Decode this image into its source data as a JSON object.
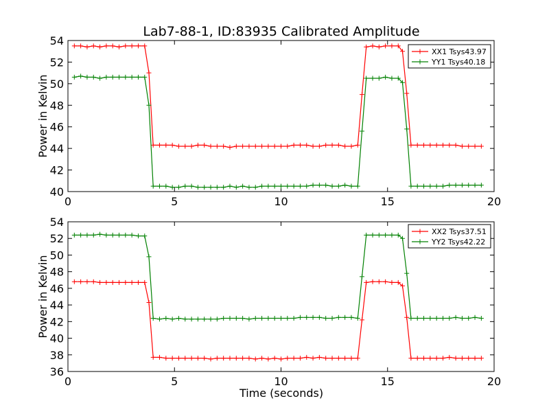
{
  "figure": {
    "title": "Lab7-88-1, ID:83935 Calibrated Amplitude",
    "xlabel": "Time (seconds)"
  },
  "colors": {
    "red": "#ff0000",
    "green": "#008000"
  },
  "chart_data": [
    {
      "type": "line",
      "ylabel": "Power in Kelvin",
      "xlim": [
        0,
        20
      ],
      "ylim": [
        40,
        54
      ],
      "xticks": [
        0,
        5,
        10,
        15,
        20
      ],
      "yticks": [
        40,
        42,
        44,
        46,
        48,
        50,
        52,
        54
      ],
      "grid": false,
      "legend": "top-right",
      "x": [
        0.3,
        0.6,
        0.9,
        1.2,
        1.5,
        1.8,
        2.1,
        2.4,
        2.7,
        3.0,
        3.3,
        3.6,
        3.8,
        4.0,
        4.3,
        4.6,
        4.9,
        5.2,
        5.5,
        5.8,
        6.1,
        6.4,
        6.7,
        7.0,
        7.3,
        7.6,
        7.9,
        8.2,
        8.5,
        8.8,
        9.1,
        9.4,
        9.7,
        10.0,
        10.3,
        10.6,
        10.9,
        11.2,
        11.5,
        11.8,
        12.1,
        12.4,
        12.7,
        13.0,
        13.3,
        13.6,
        13.8,
        14.0,
        14.3,
        14.6,
        14.9,
        15.2,
        15.5,
        15.7,
        15.9,
        16.1,
        16.4,
        16.7,
        17.0,
        17.3,
        17.6,
        17.9,
        18.2,
        18.5,
        18.8,
        19.1,
        19.4
      ],
      "series": [
        {
          "name": "XX1 Tsys43.97",
          "color": "#ff0000",
          "values": [
            53.5,
            53.5,
            53.4,
            53.5,
            53.4,
            53.5,
            53.5,
            53.4,
            53.5,
            53.5,
            53.5,
            53.5,
            51.0,
            44.3,
            44.3,
            44.3,
            44.3,
            44.2,
            44.2,
            44.2,
            44.3,
            44.3,
            44.2,
            44.2,
            44.2,
            44.1,
            44.2,
            44.2,
            44.2,
            44.2,
            44.2,
            44.2,
            44.2,
            44.2,
            44.2,
            44.3,
            44.3,
            44.3,
            44.2,
            44.2,
            44.3,
            44.3,
            44.3,
            44.2,
            44.2,
            44.3,
            49.0,
            53.4,
            53.5,
            53.4,
            53.5,
            53.5,
            53.5,
            53.0,
            49.1,
            44.3,
            44.3,
            44.3,
            44.3,
            44.3,
            44.3,
            44.3,
            44.3,
            44.2,
            44.2,
            44.2,
            44.2
          ]
        },
        {
          "name": "YY1 Tsys40.18",
          "color": "#008000",
          "values": [
            50.6,
            50.7,
            50.6,
            50.6,
            50.5,
            50.6,
            50.6,
            50.6,
            50.6,
            50.6,
            50.6,
            50.6,
            48.0,
            40.5,
            40.5,
            40.5,
            40.4,
            40.4,
            40.5,
            40.5,
            40.4,
            40.4,
            40.4,
            40.4,
            40.4,
            40.5,
            40.4,
            40.5,
            40.4,
            40.4,
            40.5,
            40.5,
            40.5,
            40.5,
            40.5,
            40.5,
            40.5,
            40.5,
            40.6,
            40.6,
            40.6,
            40.5,
            40.5,
            40.6,
            40.5,
            40.5,
            45.6,
            50.5,
            50.5,
            50.5,
            50.6,
            50.5,
            50.5,
            50.1,
            45.8,
            40.5,
            40.5,
            40.5,
            40.5,
            40.5,
            40.5,
            40.6,
            40.6,
            40.6,
            40.6,
            40.6,
            40.6
          ]
        }
      ]
    },
    {
      "type": "line",
      "ylabel": "Power in Kelvin",
      "xlabel": "Time (seconds)",
      "xlim": [
        0,
        20
      ],
      "ylim": [
        36,
        54
      ],
      "xticks": [
        0,
        5,
        10,
        15,
        20
      ],
      "yticks": [
        36,
        38,
        40,
        42,
        44,
        46,
        48,
        50,
        52,
        54
      ],
      "grid": false,
      "legend": "top-right",
      "x": [
        0.3,
        0.6,
        0.9,
        1.2,
        1.5,
        1.8,
        2.1,
        2.4,
        2.7,
        3.0,
        3.3,
        3.6,
        3.8,
        4.0,
        4.3,
        4.6,
        4.9,
        5.2,
        5.5,
        5.8,
        6.1,
        6.4,
        6.7,
        7.0,
        7.3,
        7.6,
        7.9,
        8.2,
        8.5,
        8.8,
        9.1,
        9.4,
        9.7,
        10.0,
        10.3,
        10.6,
        10.9,
        11.2,
        11.5,
        11.8,
        12.1,
        12.4,
        12.7,
        13.0,
        13.3,
        13.6,
        13.8,
        14.0,
        14.3,
        14.6,
        14.9,
        15.2,
        15.5,
        15.7,
        15.9,
        16.1,
        16.4,
        16.7,
        17.0,
        17.3,
        17.6,
        17.9,
        18.2,
        18.5,
        18.8,
        19.1,
        19.4
      ],
      "series": [
        {
          "name": "XX2 Tsys37.51",
          "color": "#ff0000",
          "values": [
            46.8,
            46.8,
            46.8,
            46.8,
            46.7,
            46.7,
            46.7,
            46.7,
            46.7,
            46.7,
            46.7,
            46.7,
            44.3,
            37.7,
            37.7,
            37.6,
            37.6,
            37.6,
            37.6,
            37.6,
            37.6,
            37.6,
            37.5,
            37.6,
            37.6,
            37.6,
            37.6,
            37.6,
            37.6,
            37.5,
            37.6,
            37.5,
            37.6,
            37.5,
            37.6,
            37.6,
            37.6,
            37.7,
            37.6,
            37.7,
            37.6,
            37.6,
            37.6,
            37.6,
            37.6,
            37.6,
            42.2,
            46.7,
            46.8,
            46.8,
            46.8,
            46.7,
            46.7,
            46.3,
            42.5,
            37.6,
            37.6,
            37.6,
            37.6,
            37.6,
            37.6,
            37.7,
            37.6,
            37.6,
            37.6,
            37.6,
            37.6
          ]
        },
        {
          "name": "YY2 Tsys42.22",
          "color": "#008000",
          "values": [
            52.4,
            52.4,
            52.4,
            52.4,
            52.5,
            52.4,
            52.4,
            52.4,
            52.4,
            52.4,
            52.3,
            52.3,
            49.8,
            42.4,
            42.3,
            42.4,
            42.3,
            42.4,
            42.3,
            42.3,
            42.3,
            42.3,
            42.3,
            42.3,
            42.4,
            42.4,
            42.4,
            42.4,
            42.3,
            42.4,
            42.4,
            42.4,
            42.4,
            42.4,
            42.4,
            42.4,
            42.5,
            42.5,
            42.5,
            42.5,
            42.4,
            42.4,
            42.5,
            42.5,
            42.5,
            42.4,
            47.4,
            52.4,
            52.4,
            52.4,
            52.4,
            52.4,
            52.4,
            52.0,
            47.8,
            42.4,
            42.4,
            42.4,
            42.4,
            42.4,
            42.4,
            42.4,
            42.5,
            42.4,
            42.4,
            42.5,
            42.4
          ]
        }
      ]
    }
  ]
}
